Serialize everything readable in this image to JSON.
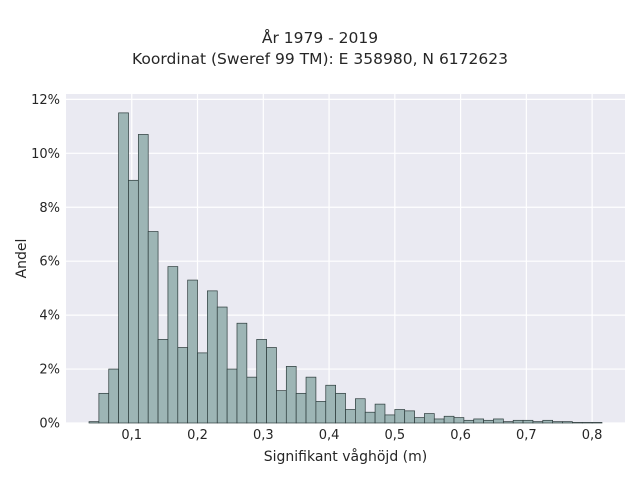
{
  "chart_data": {
    "type": "bar",
    "title_lines": [
      "År 1979 - 2019",
      "Koordinat (Sweref 99 TM): E 358980, N 6172623"
    ],
    "xlabel": "Signifikant våghöjd (m)",
    "ylabel": "Andel",
    "x_ticks": [
      "0,1",
      "0,2",
      "0,3",
      "0,4",
      "0,5",
      "0,6",
      "0,7",
      "0,8"
    ],
    "y_ticks": [
      "0%",
      "2%",
      "4%",
      "6%",
      "8%",
      "10%",
      "12%"
    ],
    "xlim": [
      0.0,
      0.85
    ],
    "ylim": [
      0,
      12.2
    ],
    "bin_width": 0.015,
    "bins_start": [
      0.035,
      0.05,
      0.065,
      0.08,
      0.095,
      0.11,
      0.125,
      0.14,
      0.155,
      0.17,
      0.185,
      0.2,
      0.215,
      0.23,
      0.245,
      0.26,
      0.275,
      0.29,
      0.305,
      0.32,
      0.335,
      0.35,
      0.365,
      0.38,
      0.395,
      0.41,
      0.425,
      0.44,
      0.455,
      0.47,
      0.485,
      0.5,
      0.515,
      0.53,
      0.545,
      0.56,
      0.575,
      0.59,
      0.605,
      0.62,
      0.635,
      0.65,
      0.665,
      0.68,
      0.695,
      0.71,
      0.725,
      0.74,
      0.755,
      0.77,
      0.785,
      0.8
    ],
    "values": [
      0.05,
      1.1,
      2.0,
      11.5,
      9.0,
      10.7,
      7.1,
      3.1,
      5.8,
      2.8,
      5.3,
      2.6,
      4.9,
      4.3,
      2.0,
      3.7,
      1.7,
      3.1,
      2.8,
      1.2,
      2.1,
      1.1,
      1.7,
      0.8,
      1.4,
      1.1,
      0.5,
      0.9,
      0.4,
      0.7,
      0.3,
      0.5,
      0.45,
      0.2,
      0.35,
      0.15,
      0.25,
      0.2,
      0.1,
      0.15,
      0.1,
      0.15,
      0.05,
      0.1,
      0.1,
      0.05,
      0.1,
      0.05,
      0.05,
      0.02,
      0.02,
      0.02
    ],
    "bar_color": "#9db5b5",
    "bar_edge_color": "#2b3a3a",
    "background_color": "#eaeaf2",
    "grid": true
  }
}
